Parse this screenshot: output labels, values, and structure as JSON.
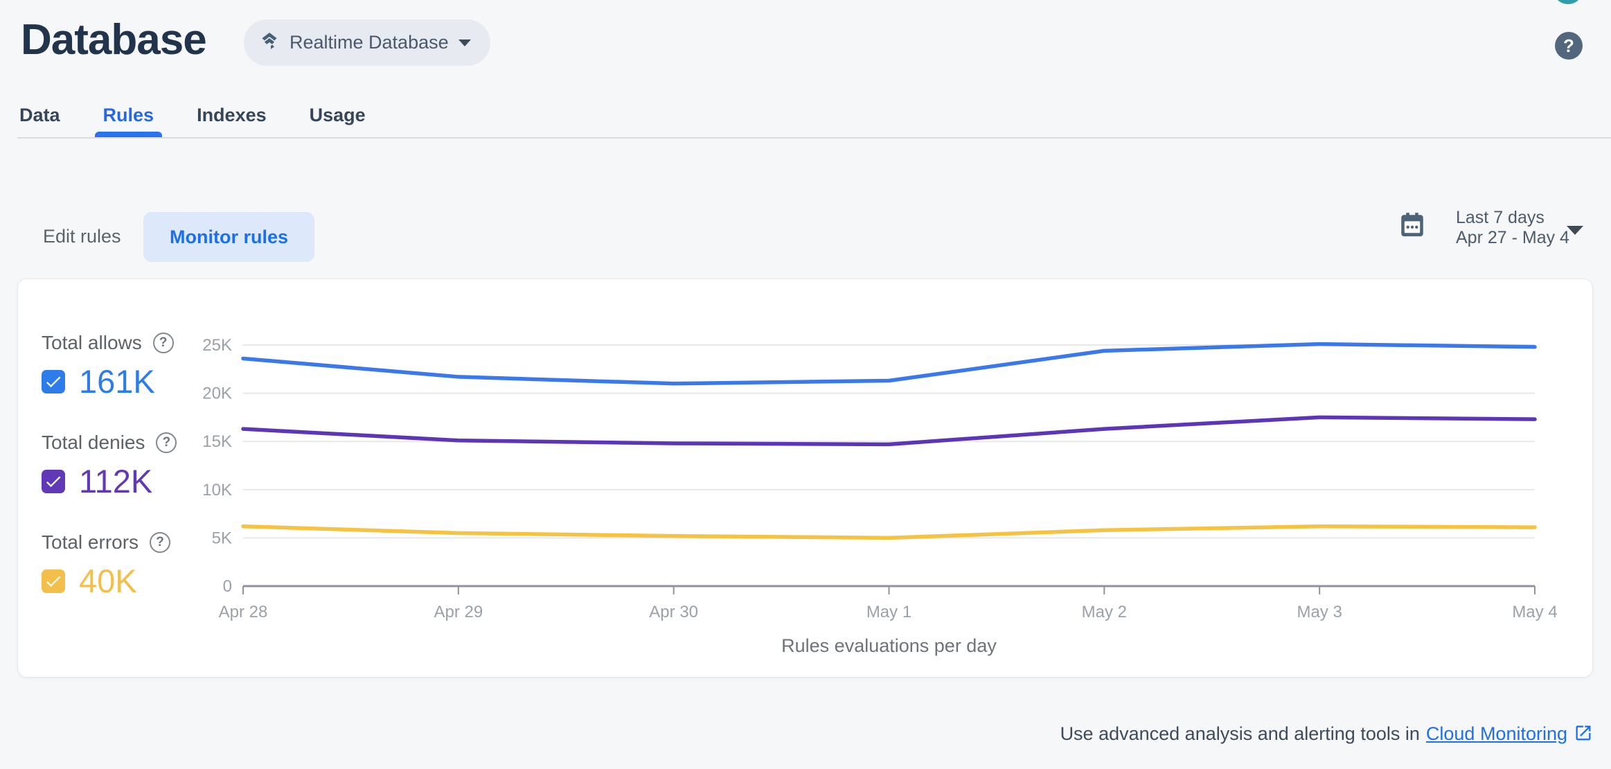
{
  "header": {
    "title": "Database",
    "database_selector": {
      "label": "Realtime Database"
    },
    "help_glyph": "?"
  },
  "tabs": [
    {
      "label": "Data",
      "active": false
    },
    {
      "label": "Rules",
      "active": true
    },
    {
      "label": "Indexes",
      "active": false
    },
    {
      "label": "Usage",
      "active": false
    }
  ],
  "toolbar": {
    "edit_rules_label": "Edit rules",
    "monitor_rules_label": "Monitor rules",
    "date_range": {
      "preset": "Last 7 days",
      "range": "Apr 27 - May 4"
    }
  },
  "legend": {
    "help_glyph": "?",
    "items": [
      {
        "label": "Total allows",
        "value": "161K",
        "color": "#2e7ce9",
        "checked": true
      },
      {
        "label": "Total denies",
        "value": "112K",
        "color": "#6138b6",
        "checked": true
      },
      {
        "label": "Total errors",
        "value": "40K",
        "color": "#f2c04a",
        "checked": true
      }
    ]
  },
  "chart_data": {
    "type": "line",
    "title": "Rules evaluations per day",
    "x": [
      "Apr 28",
      "Apr 29",
      "Apr 30",
      "May 1",
      "May 2",
      "May 3",
      "May 4"
    ],
    "series": [
      {
        "name": "Total allows",
        "color": "#3b78e8",
        "values": [
          23600,
          21700,
          21000,
          21300,
          24400,
          25100,
          24800
        ]
      },
      {
        "name": "Total denies",
        "color": "#5d36b5",
        "values": [
          16300,
          15100,
          14800,
          14700,
          16300,
          17500,
          17300
        ]
      },
      {
        "name": "Total errors",
        "color": "#f5c242",
        "values": [
          6200,
          5500,
          5200,
          5000,
          5800,
          6200,
          6100
        ]
      }
    ],
    "yticks": [
      {
        "value": 0,
        "label": "0"
      },
      {
        "value": 5000,
        "label": "5K"
      },
      {
        "value": 10000,
        "label": "10K"
      },
      {
        "value": 15000,
        "label": "15K"
      },
      {
        "value": 20000,
        "label": "20K"
      },
      {
        "value": 25000,
        "label": "25K"
      }
    ],
    "ylim": [
      0,
      26500
    ],
    "grid": true,
    "legend_position": "left",
    "xlabel": "",
    "ylabel": ""
  },
  "footer": {
    "text": "Use advanced analysis and alerting tools in",
    "link_label": "Cloud Monitoring"
  }
}
